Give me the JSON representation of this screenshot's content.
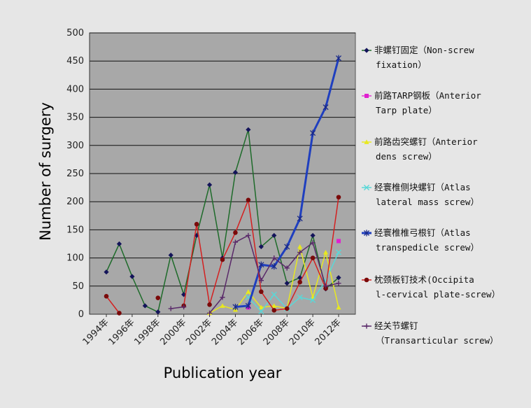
{
  "chart_data": {
    "type": "line",
    "xlabel": "Publication year",
    "ylabel": "Number of surgery",
    "ylim": [
      0,
      500
    ],
    "yticks": [
      0,
      50,
      100,
      150,
      200,
      250,
      300,
      350,
      400,
      450,
      500
    ],
    "x": [
      1994,
      1995,
      1996,
      1997,
      1998,
      1999,
      2000,
      2001,
      2002,
      2003,
      2004,
      2005,
      2006,
      2007,
      2008,
      2009,
      2010,
      2011,
      2012
    ],
    "xtick_labels": [
      "1994年",
      "1996年",
      "1998年",
      "2000年",
      "2002年",
      "2004年",
      "2006年",
      "2008年",
      "2010年",
      "2012年"
    ],
    "plot_background": "#a8a8a8",
    "grid": "horizontal",
    "legend_position": "right",
    "series": [
      {
        "name_lines": [
          "非螺钉固定（Non-screw",
          "fixation）"
        ],
        "color": "#1e6b2a",
        "marker_color": "#14145a",
        "marker": "diamond",
        "values": [
          75,
          125,
          67,
          15,
          4,
          105,
          35,
          140,
          230,
          100,
          252,
          328,
          120,
          140,
          55,
          65,
          140,
          45,
          65
        ]
      },
      {
        "name_lines": [
          "前路TARP钢板（Anterior",
          "Tarp plate）"
        ],
        "color": "#e43ad0",
        "marker_color": "#e020d0",
        "marker": "square",
        "values": [
          null,
          null,
          null,
          null,
          null,
          null,
          null,
          null,
          null,
          null,
          null,
          12,
          null,
          null,
          null,
          null,
          null,
          null,
          130
        ]
      },
      {
        "name_lines": [
          "前路齿突螺钉（Anterior",
          "dens screw）"
        ],
        "color": "#e8e820",
        "marker_color": "#e8e820",
        "marker": "triangle",
        "values": [
          null,
          null,
          null,
          null,
          null,
          null,
          null,
          null,
          2,
          15,
          8,
          40,
          12,
          15,
          10,
          120,
          30,
          110,
          12
        ]
      },
      {
        "name_lines": [
          "经寰椎侧块螺钉（Atlas",
          "lateral mass screw）"
        ],
        "color": "#5ad8d8",
        "marker_color": "#5ad8d8",
        "marker": "x",
        "values": [
          null,
          null,
          null,
          null,
          null,
          null,
          null,
          null,
          null,
          null,
          null,
          30,
          5,
          35,
          10,
          30,
          25,
          60,
          110
        ]
      },
      {
        "name_lines": [
          "经寰椎椎弓根钉（Atlas",
          "transpedicle screw）"
        ],
        "color": "#1f3fbf",
        "marker_color": "#1a2a8a",
        "marker": "star",
        "line_width": 3,
        "values": [
          null,
          null,
          null,
          null,
          null,
          null,
          null,
          null,
          null,
          null,
          13,
          15,
          88,
          85,
          120,
          170,
          322,
          368,
          455
        ]
      },
      {
        "name_lines": [
          "枕颈板钉技术(Occipita",
          "l-cervical plate-screw）"
        ],
        "color": "#d42020",
        "marker_color": "#7a0a0a",
        "marker": "circle",
        "values": [
          32,
          2,
          null,
          null,
          29,
          null,
          15,
          160,
          17,
          97,
          145,
          203,
          40,
          7,
          10,
          57,
          100,
          46,
          208
        ]
      },
      {
        "name_lines": [
          "经关节螺钉",
          "（Transarticular screw）"
        ],
        "color": "#5a2a6a",
        "marker_color": "#5a2a6a",
        "marker": "plus",
        "values": [
          null,
          null,
          null,
          null,
          null,
          10,
          13,
          null,
          2,
          30,
          128,
          140,
          60,
          100,
          82,
          110,
          127,
          50,
          55
        ]
      }
    ]
  }
}
